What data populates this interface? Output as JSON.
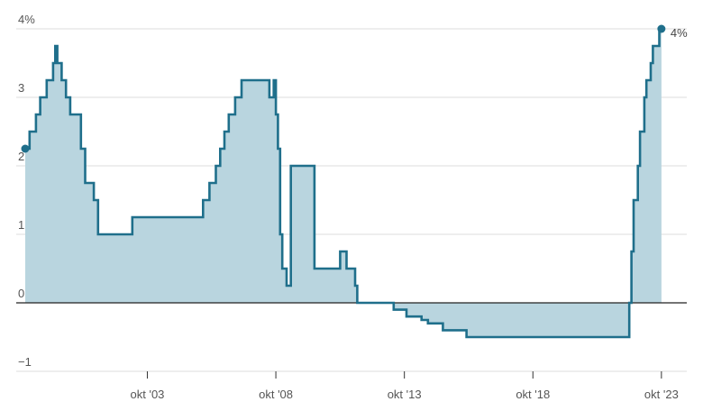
{
  "chart_data": {
    "type": "area",
    "step": true,
    "x_axis": {
      "type": "date",
      "range": [
        "1999-01",
        "2023-12"
      ],
      "tick_labels": [
        "okt '03",
        "okt '08",
        "okt '13",
        "okt '18",
        "okt '23"
      ]
    },
    "y_axis": {
      "range": [
        -1,
        4
      ],
      "tick_labels": [
        "4%",
        "3",
        "2",
        "1",
        "0",
        "−1"
      ],
      "grid": true
    },
    "end_label": "4%",
    "colors": {
      "line": "#1f6f8b",
      "fill": "#b9d5df",
      "grid": "#dddddd",
      "zero_line": "#222222"
    },
    "series": [
      {
        "x": [
          "1999-01",
          "1999-03",
          "1999-06",
          "1999-08",
          "1999-11",
          "2000-02",
          "2000-03",
          "2000-04",
          "2000-06",
          "2000-08",
          "2000-10",
          "2001-03",
          "2001-05",
          "2001-09",
          "2001-11",
          "2002-12",
          "2003-03",
          "2003-06",
          "2005-12",
          "2006-03",
          "2006-06",
          "2006-08",
          "2006-10",
          "2006-12",
          "2007-03",
          "2007-06",
          "2008-07",
          "2008-09",
          "2008-10",
          "2008-11",
          "2008-12",
          "2009-01",
          "2009-03",
          "2009-04",
          "2009-05",
          "2009-10",
          "2010-04",
          "2010-10",
          "2011-04",
          "2011-07",
          "2011-11",
          "2011-12",
          "2012-07",
          "2012-11",
          "2013-05",
          "2013-11",
          "2014-06",
          "2014-09",
          "2015-04",
          "2015-12",
          "2016-03",
          "2019-09",
          "2022-07",
          "2022-08",
          "2022-09",
          "2022-11",
          "2022-12",
          "2023-02",
          "2023-03",
          "2023-05",
          "2023-06",
          "2023-08",
          "2023-09",
          "2023-10"
        ],
        "y": [
          2.25,
          2.5,
          2.75,
          3.0,
          3.25,
          3.5,
          3.75,
          3.5,
          3.25,
          3.0,
          2.75,
          2.25,
          1.75,
          1.5,
          1.0,
          1.0,
          1.25,
          1.25,
          1.5,
          1.75,
          2.0,
          2.25,
          2.5,
          2.75,
          3.0,
          3.25,
          3.0,
          3.25,
          2.75,
          2.25,
          1.0,
          0.5,
          0.25,
          0.25,
          2.0,
          2.0,
          0.5,
          0.5,
          0.75,
          0.5,
          0.25,
          0.0,
          0.0,
          0.0,
          -0.1,
          -0.2,
          -0.25,
          -0.3,
          -0.4,
          -0.4,
          -0.5,
          -0.5,
          0.0,
          0.75,
          1.5,
          2.0,
          2.5,
          3.0,
          3.25,
          3.5,
          3.75,
          3.75,
          4.0,
          4.0
        ]
      }
    ]
  }
}
